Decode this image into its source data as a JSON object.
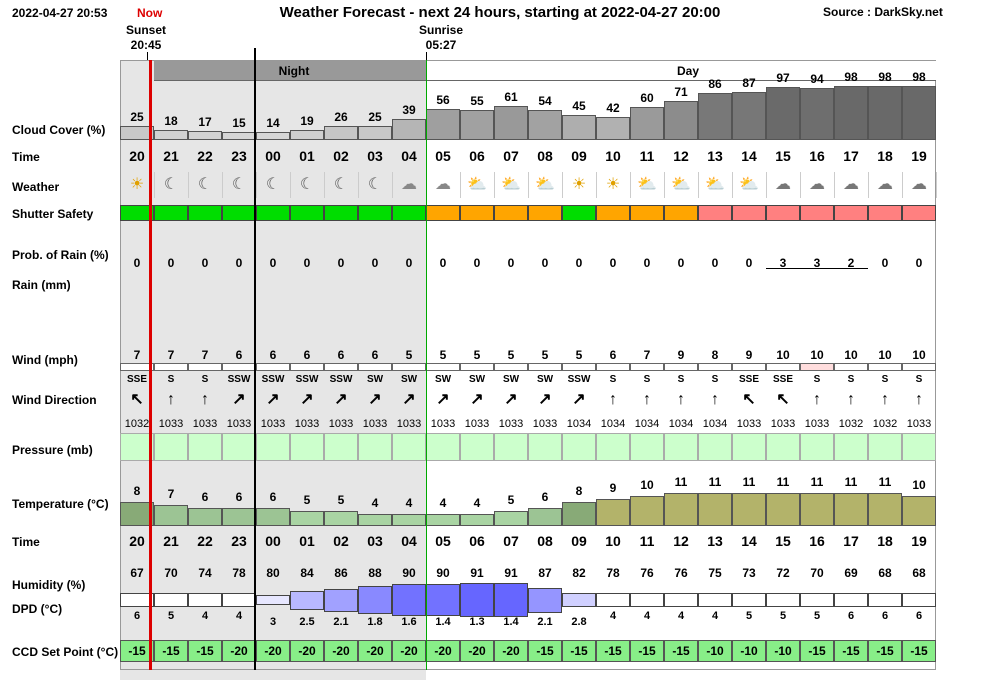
{
  "header": {
    "datetime": "2022-04-27 20:53",
    "now": "Now",
    "title": "Weather Forecast - next 24 hours, starting at 2022-04-27 20:00",
    "source": "Source : DarkSky.net",
    "sunset_label": "Sunset",
    "sunset_time": "20:45",
    "sunrise_label": "Sunrise",
    "sunrise_time": "05:27"
  },
  "bands": {
    "night": "Night",
    "day": "Day"
  },
  "labels": {
    "cloud": "Cloud Cover (%)",
    "time": "Time",
    "weather": "Weather",
    "shutter": "Shutter Safety",
    "prob": "Prob. of Rain (%)",
    "rain": "Rain (mm)",
    "wind": "Wind (mph)",
    "winddir": "Wind Direction",
    "pressure": "Pressure (mb)",
    "temp": "Temperature (°C)",
    "time2": "Time",
    "humidity": "Humidity (%)",
    "dpd": "DPD (°C)",
    "ccd": "CCD Set Point (°C)"
  },
  "colors": {
    "safe": "#00dd00",
    "caution": "#ffa500",
    "unsafe": "#ff8080",
    "cloud_dark": "#666666",
    "cloud_light": "#e8e8e8",
    "temp_cool": "#a9d4a3",
    "temp_warm": "#b3b36a",
    "humid": "#6666ff",
    "ccd": "#88ee88",
    "night_shade": "#e6e6e6",
    "now_line": "#dd0000",
    "sunrise_line": "#00aa00"
  },
  "hours": [
    "20",
    "21",
    "22",
    "23",
    "00",
    "01",
    "02",
    "03",
    "04",
    "05",
    "06",
    "07",
    "08",
    "09",
    "10",
    "11",
    "12",
    "13",
    "14",
    "15",
    "16",
    "17",
    "18",
    "19"
  ],
  "cloud_cover": [
    25,
    18,
    17,
    15,
    14,
    19,
    26,
    25,
    39,
    56,
    55,
    61,
    54,
    45,
    42,
    60,
    71,
    86,
    87,
    97,
    94,
    98,
    98,
    98
  ],
  "weather_icons": [
    "sun-icon",
    "moon-icon",
    "moon-icon",
    "moon-icon",
    "moon-icon",
    "moon-icon",
    "moon-icon",
    "moon-icon",
    "moon-cloud-icon",
    "moon-cloud-icon",
    "sun-cloud-icon",
    "sun-cloud-icon",
    "sun-cloud-icon",
    "sun-icon",
    "sun-icon",
    "sun-cloud-icon",
    "sun-cloud-icon",
    "sun-cloud-icon",
    "sun-cloud-icon",
    "cloud-icon",
    "cloud-icon",
    "cloud-icon",
    "cloud-icon",
    "cloud-icon"
  ],
  "shutter_safety": [
    "safe",
    "safe",
    "safe",
    "safe",
    "safe",
    "safe",
    "safe",
    "safe",
    "safe",
    "caution",
    "caution",
    "caution",
    "caution",
    "safe",
    "caution",
    "caution",
    "caution",
    "unsafe",
    "unsafe",
    "unsafe",
    "unsafe",
    "unsafe",
    "unsafe",
    "unsafe"
  ],
  "prob_rain": [
    0,
    0,
    0,
    0,
    0,
    0,
    0,
    0,
    0,
    0,
    0,
    0,
    0,
    0,
    0,
    0,
    0,
    0,
    0,
    3,
    3,
    2,
    0,
    0
  ],
  "wind_speed": [
    7,
    7,
    7,
    6,
    6,
    6,
    6,
    6,
    5,
    5,
    5,
    5,
    5,
    5,
    6,
    7,
    9,
    8,
    9,
    10,
    10,
    10,
    10,
    10
  ],
  "wind_dir": [
    "SSE",
    "S",
    "S",
    "SSW",
    "SSW",
    "SSW",
    "SSW",
    "SW",
    "SW",
    "SW",
    "SW",
    "SW",
    "SW",
    "SSW",
    "S",
    "S",
    "S",
    "S",
    "SSE",
    "SSE",
    "S",
    "S",
    "S",
    "S"
  ],
  "pressure": [
    1032,
    1033,
    1033,
    1033,
    1033,
    1033,
    1033,
    1033,
    1033,
    1033,
    1033,
    1033,
    1033,
    1034,
    1034,
    1034,
    1034,
    1034,
    1033,
    1033,
    1033,
    1032,
    1032,
    1033
  ],
  "temperature": [
    8,
    7,
    6,
    6,
    6,
    5,
    5,
    4,
    4,
    4,
    4,
    5,
    6,
    8,
    9,
    10,
    11,
    11,
    11,
    11,
    11,
    11,
    11,
    10
  ],
  "humidity": [
    67,
    70,
    74,
    78,
    80,
    84,
    86,
    88,
    90,
    90,
    91,
    91,
    87,
    82,
    78,
    76,
    76,
    75,
    73,
    72,
    70,
    69,
    68,
    68
  ],
  "dpd": [
    "6",
    "5",
    "4",
    "4",
    "3",
    "2.5",
    "2.1",
    "1.8",
    "1.6",
    "1.4",
    "1.3",
    "1.4",
    "2.1",
    "2.8",
    "4",
    "4",
    "4",
    "4",
    "5",
    "5",
    "5",
    "6",
    "6",
    "6"
  ],
  "ccd_set_point": [
    -15,
    -15,
    -15,
    -20,
    -20,
    -20,
    -20,
    -20,
    -20,
    -20,
    -20,
    -20,
    -15,
    -15,
    -15,
    -15,
    -15,
    -10,
    -10,
    -10,
    -15,
    -15,
    -15,
    -15
  ]
}
